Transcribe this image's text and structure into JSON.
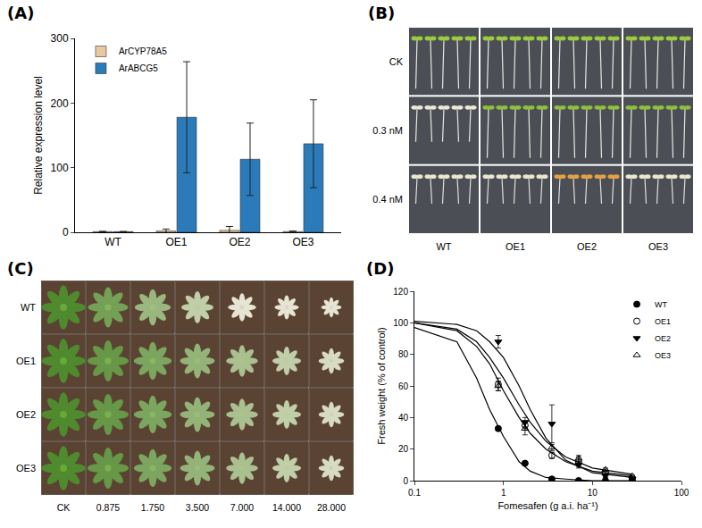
{
  "chart_data": [
    {
      "panel": "(A)",
      "type": "bar",
      "categories": [
        "WT",
        "OE1",
        "OE2",
        "OE3"
      ],
      "series": [
        {
          "name": "ArCYP78A5",
          "color": "#e8c9a0",
          "values": [
            1,
            2,
            3,
            1
          ],
          "error": [
            0.5,
            3,
            6,
            1
          ]
        },
        {
          "name": "ArABCG5",
          "color": "#2b7bba",
          "values": [
            1,
            178,
            113,
            137
          ],
          "error": [
            0.3,
            86,
            56,
            68
          ]
        }
      ],
      "ylabel": "Relative expression level",
      "ylim": [
        0,
        300
      ],
      "yticks": [
        0,
        100,
        200,
        300
      ],
      "legend": "top-left",
      "grid": false
    },
    {
      "panel": "(D)",
      "type": "scatter",
      "xlabel": "Fomesafen (g a.i. ha⁻¹)",
      "ylabel": "Fresh weight (% of control)",
      "log": "x",
      "xlim": [
        0.1,
        100
      ],
      "xticks": [
        0.1,
        1,
        10,
        100
      ],
      "ylim": [
        0,
        120
      ],
      "yticks": [
        0,
        20,
        40,
        60,
        80,
        100,
        120
      ],
      "legend": "top-right",
      "grid": false,
      "x": [
        0.875,
        1.75,
        3.5,
        7,
        14,
        28
      ],
      "series": [
        {
          "name": "WT",
          "color": "#000000",
          "marker": "circle",
          "values": [
            33,
            11,
            1,
            0,
            0,
            0
          ],
          "error": [
            1,
            1,
            0.5,
            0,
            0,
            0
          ],
          "fit": {
            "x": [
              0.1,
              0.3,
              0.5,
              0.7,
              1,
              1.5,
              2,
              3,
              5,
              10,
              28
            ],
            "values": [
              97,
              88,
              65,
              45,
              28,
              12,
              6,
              2,
              1,
              0,
              0
            ]
          }
        },
        {
          "name": "OE1",
          "color": "#000000",
          "marker": "circle-open",
          "values": [
            61,
            35,
            16,
            12,
            5,
            1
          ],
          "error": [
            4,
            3,
            2,
            3,
            1,
            0.5
          ],
          "fit": {
            "x": [
              0.1,
              0.3,
              0.5,
              0.7,
              1,
              1.5,
              2,
              3,
              5,
              10,
              28
            ],
            "values": [
              100,
              95,
              85,
              74,
              57,
              40,
              30,
              20,
              12,
              6,
              3
            ]
          }
        },
        {
          "name": "OE2",
          "color": "#000000",
          "marker": "triangle-down",
          "values": [
            88,
            37,
            36,
            10,
            3,
            1
          ],
          "error": [
            4,
            3,
            12,
            2,
            1,
            0.5
          ],
          "fit": {
            "x": [
              0.1,
              0.3,
              0.5,
              0.7,
              1,
              1.5,
              2,
              3,
              5,
              10,
              28
            ],
            "values": [
              101,
              99,
              95,
              88,
              78,
              60,
              45,
              27,
              13,
              5,
              2
            ]
          }
        },
        {
          "name": "OE3",
          "color": "#000000",
          "marker": "triangle-up-open",
          "values": [
            60,
            33,
            21,
            14,
            7,
            3
          ],
          "error": [
            3,
            4,
            2,
            2,
            1,
            0.5
          ],
          "fit": {
            "x": [
              0.1,
              0.3,
              0.5,
              0.7,
              1,
              1.5,
              2,
              3,
              5,
              10,
              28
            ],
            "values": [
              100,
              96,
              88,
              78,
              65,
              48,
              37,
              25,
              15,
              8,
              4
            ]
          }
        }
      ]
    }
  ],
  "photos": [
    {
      "panel": "(B)",
      "rows": [
        "CK",
        "0.3 nM",
        "0.4 nM"
      ],
      "columns": [
        "WT",
        "OE1",
        "OE2",
        "OE3"
      ]
    },
    {
      "panel": "(C)",
      "rows": [
        "WT",
        "OE1",
        "OE2",
        "OE3"
      ],
      "columns": [
        "CK",
        "0.875",
        "1.750",
        "3.500",
        "7.000",
        "14.000",
        "28.000"
      ]
    }
  ]
}
